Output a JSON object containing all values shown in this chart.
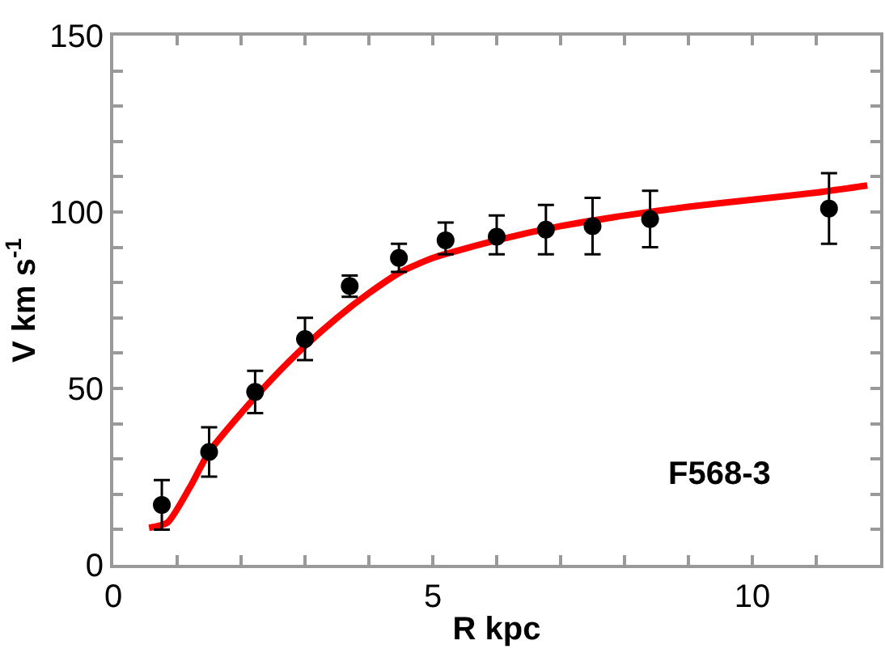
{
  "chart_data": {
    "type": "scatter",
    "xlabel": "R kpc",
    "ylabel": "V km s$^{-1}$",
    "annotations": [
      "F568-3"
    ],
    "xlim": [
      0,
      12
    ],
    "ylim": [
      0,
      150
    ],
    "xticks": [
      0,
      {
        "value": 1,
        "label": null
      },
      {
        "value": 2,
        "label": null
      },
      {
        "value": 3,
        "label": null
      },
      {
        "value": 4,
        "label": null
      },
      5,
      {
        "value": 6,
        "label": null
      },
      {
        "value": 7,
        "label": null
      },
      {
        "value": 8,
        "label": null
      },
      {
        "value": 9,
        "label": null
      },
      10,
      {
        "value": 11,
        "label": null
      },
      {
        "value": 12,
        "label": null
      }
    ],
    "yticks": [
      0,
      {
        "value": 10,
        "label": null
      },
      {
        "value": 20,
        "label": null
      },
      {
        "value": 30,
        "label": null
      },
      {
        "value": 40,
        "label": null
      },
      50,
      {
        "value": 60,
        "label": null
      },
      {
        "value": 70,
        "label": null
      },
      {
        "value": 80,
        "label": null
      },
      {
        "value": 90,
        "label": null
      },
      100,
      {
        "value": 110,
        "label": null
      },
      {
        "value": 120,
        "label": null
      },
      {
        "value": 130,
        "label": null
      },
      {
        "value": 140,
        "label": null
      },
      150
    ],
    "grid": false,
    "series": [
      {
        "color": "#000000",
        "marker": "circle",
        "x": [
          0.76,
          1.5,
          2.22,
          3.0,
          3.7,
          4.47,
          5.2,
          6.0,
          6.77,
          7.5,
          8.4,
          11.2
        ],
        "values": [
          17,
          32,
          49,
          64,
          79,
          87,
          92,
          93,
          95,
          96,
          98,
          101
        ],
        "errors": [
          [
            10,
            24
          ],
          [
            25,
            39
          ],
          [
            43,
            55
          ],
          [
            58,
            70
          ],
          [
            76,
            82
          ],
          [
            83,
            91
          ],
          [
            88,
            97
          ],
          [
            88,
            99
          ],
          [
            88,
            102
          ],
          [
            88,
            104
          ],
          [
            90,
            106
          ],
          [
            91,
            111
          ]
        ]
      },
      {
        "type": "line",
        "color": "#ff0000",
        "marker": "none",
        "line_style": "solid",
        "x": [
          0.56,
          0.85,
          1.2,
          1.5,
          2,
          2.5,
          3,
          3.5,
          4,
          4.5,
          5,
          6,
          7,
          8,
          9,
          10,
          11,
          11.8
        ],
        "values": [
          10.5,
          12,
          22,
          32,
          43,
          53,
          62,
          70,
          77,
          83,
          87,
          92,
          96,
          99,
          101.5,
          103.5,
          105.5,
          107.5
        ]
      }
    ]
  }
}
